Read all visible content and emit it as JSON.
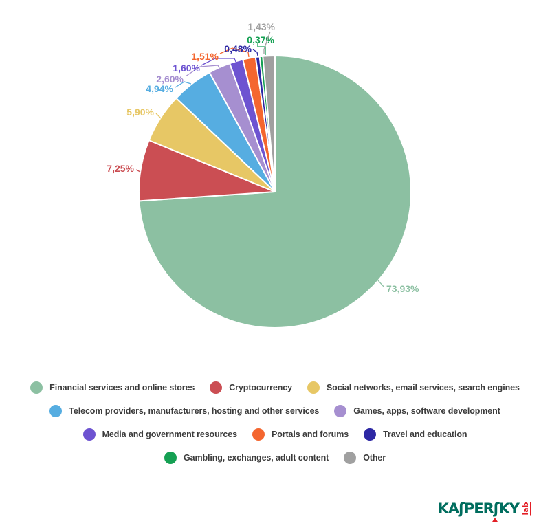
{
  "chart_data": {
    "type": "pie",
    "title": "",
    "unit": "%",
    "decimal_separator": ",",
    "legend_position": "bottom",
    "slices": [
      {
        "label": "Financial services and online stores",
        "value": 73.93,
        "display": "73,93%",
        "color": "#8cc0a2"
      },
      {
        "label": "Cryptocurrency",
        "value": 7.25,
        "display": "7,25%",
        "color": "#cb4e53"
      },
      {
        "label": "Social networks, email services, search engines",
        "value": 5.9,
        "display": "5,90%",
        "color": "#e7c765"
      },
      {
        "label": "Telecom providers, manufacturers, hosting and other services",
        "value": 4.94,
        "display": "4,94%",
        "color": "#56ade1"
      },
      {
        "label": "Games, apps, software development",
        "value": 2.6,
        "display": "2,60%",
        "color": "#a68fd0"
      },
      {
        "label": "Media and government resources",
        "value": 1.6,
        "display": "1,60%",
        "color": "#6d53d1"
      },
      {
        "label": "Portals and forums",
        "value": 1.51,
        "display": "1,51%",
        "color": "#f4662f"
      },
      {
        "label": "Travel and education",
        "value": 0.48,
        "display": "0,48%",
        "color": "#2d28a4"
      },
      {
        "label": "Gambling, exchanges, adult content",
        "value": 0.37,
        "display": "0,37%",
        "color": "#15a053"
      },
      {
        "label": "Other",
        "value": 1.43,
        "display": "1,43%",
        "color": "#a0a0a0"
      }
    ],
    "legend_rows": [
      [
        0,
        1,
        2
      ],
      [
        3,
        4
      ],
      [
        5,
        6,
        7
      ],
      [
        8,
        9
      ]
    ]
  },
  "footer": {
    "logo": {
      "brand": "KASPERSKY",
      "sub": "lab",
      "brand_color": "#006d5e",
      "accent_color": "#e31e25"
    }
  }
}
